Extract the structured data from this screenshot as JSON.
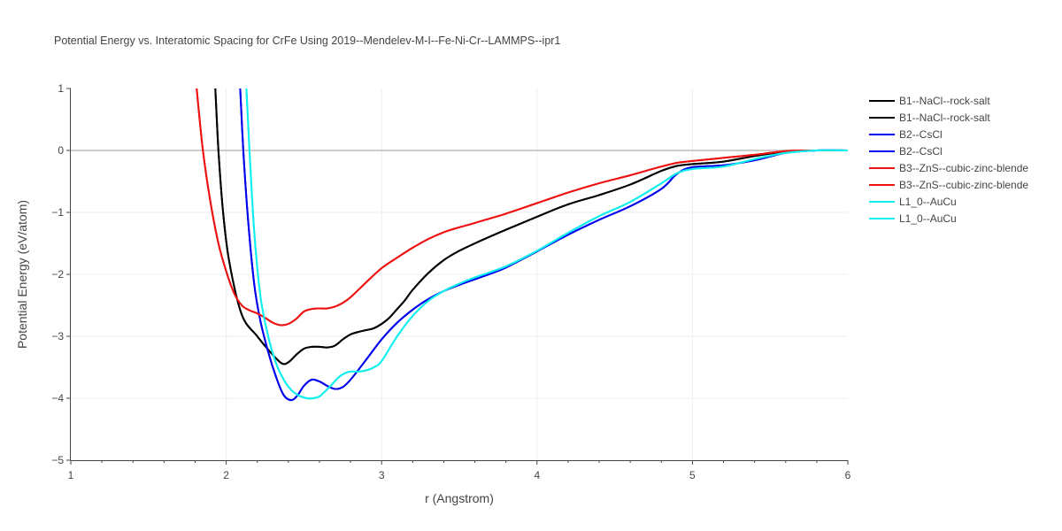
{
  "chart_data": {
    "type": "line",
    "title": "Potential Energy vs. Interatomic Spacing for CrFe Using 2019--Mendelev-M-I--Fe-Ni-Cr--LAMMPS--ipr1",
    "xlabel": "r (Angstrom)",
    "ylabel": "Potential Energy (eV/atom)",
    "xlim": [
      1,
      6
    ],
    "ylim": [
      -5,
      1
    ],
    "xticks": [
      "1",
      "2",
      "3",
      "4",
      "5",
      "6"
    ],
    "yticks": [
      "1",
      "0",
      "−1",
      "−2",
      "−3",
      "−4",
      "−5"
    ],
    "grid": true,
    "legend_position": "right",
    "series": [
      {
        "name": "B1--NaCl--rock-salt",
        "color": "#000000",
        "x": [
          1.93,
          1.95,
          1.98,
          2.02,
          2.1,
          2.2,
          2.3,
          2.36,
          2.4,
          2.45,
          2.5,
          2.55,
          2.6,
          2.65,
          2.7,
          2.75,
          2.8,
          2.85,
          2.9,
          2.95,
          3.0,
          3.05,
          3.1,
          3.15,
          3.2,
          3.3,
          3.4,
          3.5,
          3.6,
          3.8,
          4.0,
          4.2,
          4.4,
          4.6,
          4.8,
          4.9,
          5.0,
          5.2,
          5.4,
          5.6,
          5.8,
          6.0
        ],
        "y": [
          1.0,
          0.0,
          -1.0,
          -1.8,
          -2.65,
          -3.0,
          -3.3,
          -3.44,
          -3.42,
          -3.3,
          -3.2,
          -3.17,
          -3.17,
          -3.18,
          -3.15,
          -3.05,
          -2.97,
          -2.93,
          -2.9,
          -2.87,
          -2.8,
          -2.7,
          -2.56,
          -2.42,
          -2.25,
          -1.98,
          -1.77,
          -1.62,
          -1.5,
          -1.28,
          -1.07,
          -0.87,
          -0.72,
          -0.55,
          -0.33,
          -0.25,
          -0.22,
          -0.18,
          -0.09,
          -0.02,
          0.0,
          0.0
        ]
      },
      {
        "name": "B1--NaCl--rock-salt",
        "color": "#000000",
        "x": [
          1.93,
          1.95,
          1.98,
          2.02,
          2.1,
          2.2,
          2.3,
          2.36,
          2.4,
          2.45,
          2.5,
          2.55,
          2.6,
          2.65,
          2.7,
          2.75,
          2.8,
          2.85,
          2.9,
          2.95,
          3.0,
          3.05,
          3.1,
          3.15,
          3.2,
          3.3,
          3.4,
          3.5,
          3.6,
          3.8,
          4.0,
          4.2,
          4.4,
          4.6,
          4.8,
          4.9,
          5.0,
          5.2,
          5.4,
          5.6,
          5.8,
          6.0
        ],
        "y": [
          1.0,
          0.0,
          -1.0,
          -1.8,
          -2.65,
          -3.0,
          -3.3,
          -3.44,
          -3.42,
          -3.3,
          -3.2,
          -3.17,
          -3.17,
          -3.18,
          -3.15,
          -3.05,
          -2.97,
          -2.93,
          -2.9,
          -2.87,
          -2.8,
          -2.7,
          -2.56,
          -2.42,
          -2.25,
          -1.98,
          -1.77,
          -1.62,
          -1.5,
          -1.28,
          -1.07,
          -0.87,
          -0.72,
          -0.55,
          -0.33,
          -0.25,
          -0.22,
          -0.18,
          -0.09,
          -0.02,
          0.0,
          0.0
        ]
      },
      {
        "name": "B2--CsCl",
        "color": "#0000ee",
        "x": [
          2.09,
          2.11,
          2.14,
          2.18,
          2.22,
          2.27,
          2.32,
          2.37,
          2.42,
          2.46,
          2.5,
          2.55,
          2.6,
          2.65,
          2.7,
          2.75,
          2.8,
          2.9,
          3.0,
          3.1,
          3.2,
          3.3,
          3.4,
          3.5,
          3.6,
          3.7,
          3.8,
          4.0,
          4.2,
          4.4,
          4.6,
          4.8,
          4.9,
          5.0,
          5.2,
          5.4,
          5.6,
          5.8,
          6.0
        ],
        "y": [
          1.0,
          0.0,
          -1.1,
          -2.15,
          -2.75,
          -3.25,
          -3.65,
          -3.95,
          -4.03,
          -3.95,
          -3.8,
          -3.7,
          -3.73,
          -3.8,
          -3.85,
          -3.82,
          -3.7,
          -3.38,
          -3.05,
          -2.78,
          -2.57,
          -2.4,
          -2.27,
          -2.17,
          -2.08,
          -1.99,
          -1.89,
          -1.63,
          -1.36,
          -1.12,
          -0.9,
          -0.62,
          -0.38,
          -0.27,
          -0.24,
          -0.16,
          -0.04,
          0.0,
          0.0
        ]
      },
      {
        "name": "B2--CsCl",
        "color": "#0000ee",
        "x": [
          2.09,
          2.11,
          2.14,
          2.18,
          2.22,
          2.27,
          2.32,
          2.37,
          2.42,
          2.46,
          2.5,
          2.55,
          2.6,
          2.65,
          2.7,
          2.75,
          2.8,
          2.9,
          3.0,
          3.1,
          3.2,
          3.3,
          3.4,
          3.5,
          3.6,
          3.7,
          3.8,
          4.0,
          4.2,
          4.4,
          4.6,
          4.8,
          4.9,
          5.0,
          5.2,
          5.4,
          5.6,
          5.8,
          6.0
        ],
        "y": [
          1.0,
          0.0,
          -1.1,
          -2.15,
          -2.75,
          -3.25,
          -3.65,
          -3.95,
          -4.03,
          -3.95,
          -3.8,
          -3.7,
          -3.73,
          -3.8,
          -3.85,
          -3.82,
          -3.7,
          -3.38,
          -3.05,
          -2.78,
          -2.57,
          -2.4,
          -2.27,
          -2.17,
          -2.08,
          -1.99,
          -1.89,
          -1.63,
          -1.36,
          -1.12,
          -0.9,
          -0.62,
          -0.38,
          -0.27,
          -0.24,
          -0.16,
          -0.04,
          0.0,
          0.0
        ]
      },
      {
        "name": "B3--ZnS--cubic-zinc-blende",
        "color": "#ee1111",
        "x": [
          1.81,
          1.85,
          1.9,
          1.95,
          2.0,
          2.05,
          2.1,
          2.15,
          2.2,
          2.25,
          2.3,
          2.35,
          2.4,
          2.45,
          2.5,
          2.55,
          2.6,
          2.65,
          2.7,
          2.75,
          2.8,
          2.9,
          3.0,
          3.1,
          3.2,
          3.3,
          3.4,
          3.5,
          3.6,
          3.8,
          4.0,
          4.2,
          4.4,
          4.6,
          4.8,
          4.9,
          5.0,
          5.2,
          5.4,
          5.6,
          5.8,
          6.0
        ],
        "y": [
          1.0,
          0.0,
          -0.85,
          -1.5,
          -1.95,
          -2.3,
          -2.5,
          -2.58,
          -2.63,
          -2.7,
          -2.78,
          -2.82,
          -2.8,
          -2.72,
          -2.6,
          -2.56,
          -2.55,
          -2.55,
          -2.52,
          -2.46,
          -2.37,
          -2.13,
          -1.9,
          -1.73,
          -1.57,
          -1.43,
          -1.32,
          -1.24,
          -1.17,
          -1.02,
          -0.85,
          -0.68,
          -0.53,
          -0.4,
          -0.26,
          -0.2,
          -0.17,
          -0.12,
          -0.07,
          -0.01,
          0.0,
          0.0
        ]
      },
      {
        "name": "B3--ZnS--cubic-zinc-blende",
        "color": "#ee1111",
        "x": [
          1.81,
          1.85,
          1.9,
          1.95,
          2.0,
          2.05,
          2.1,
          2.15,
          2.2,
          2.25,
          2.3,
          2.35,
          2.4,
          2.45,
          2.5,
          2.55,
          2.6,
          2.65,
          2.7,
          2.75,
          2.8,
          2.9,
          3.0,
          3.1,
          3.2,
          3.3,
          3.4,
          3.5,
          3.6,
          3.8,
          4.0,
          4.2,
          4.4,
          4.6,
          4.8,
          4.9,
          5.0,
          5.2,
          5.4,
          5.6,
          5.8,
          6.0
        ],
        "y": [
          1.0,
          0.0,
          -0.85,
          -1.5,
          -1.95,
          -2.3,
          -2.5,
          -2.58,
          -2.63,
          -2.7,
          -2.78,
          -2.82,
          -2.8,
          -2.72,
          -2.6,
          -2.56,
          -2.55,
          -2.55,
          -2.52,
          -2.46,
          -2.37,
          -2.13,
          -1.9,
          -1.73,
          -1.57,
          -1.43,
          -1.32,
          -1.24,
          -1.17,
          -1.02,
          -0.85,
          -0.68,
          -0.53,
          -0.4,
          -0.26,
          -0.2,
          -0.17,
          -0.12,
          -0.07,
          -0.01,
          0.0,
          0.0
        ]
      },
      {
        "name": "L1_0--AuCu",
        "color": "#11eeee",
        "x": [
          2.13,
          2.15,
          2.18,
          2.22,
          2.27,
          2.32,
          2.37,
          2.42,
          2.47,
          2.52,
          2.56,
          2.6,
          2.64,
          2.68,
          2.72,
          2.76,
          2.8,
          2.85,
          2.9,
          2.95,
          3.0,
          3.1,
          3.2,
          3.3,
          3.4,
          3.5,
          3.6,
          3.8,
          4.0,
          4.2,
          4.4,
          4.6,
          4.8,
          4.9,
          5.0,
          5.2,
          5.4,
          5.6,
          5.8,
          6.0
        ],
        "y": [
          1.0,
          0.0,
          -1.3,
          -2.35,
          -3.0,
          -3.43,
          -3.7,
          -3.87,
          -3.96,
          -4.0,
          -4.0,
          -3.97,
          -3.88,
          -3.78,
          -3.67,
          -3.6,
          -3.57,
          -3.57,
          -3.55,
          -3.5,
          -3.4,
          -3.0,
          -2.67,
          -2.43,
          -2.27,
          -2.15,
          -2.05,
          -1.87,
          -1.62,
          -1.33,
          -1.06,
          -0.83,
          -0.53,
          -0.37,
          -0.3,
          -0.26,
          -0.14,
          -0.04,
          0.0,
          0.0
        ]
      },
      {
        "name": "L1_0--AuCu",
        "color": "#11eeee",
        "x": [
          2.13,
          2.15,
          2.18,
          2.22,
          2.27,
          2.32,
          2.37,
          2.42,
          2.47,
          2.52,
          2.56,
          2.6,
          2.64,
          2.68,
          2.72,
          2.76,
          2.8,
          2.85,
          2.9,
          2.95,
          3.0,
          3.1,
          3.2,
          3.3,
          3.4,
          3.5,
          3.6,
          3.8,
          4.0,
          4.2,
          4.4,
          4.6,
          4.8,
          4.9,
          5.0,
          5.2,
          5.4,
          5.6,
          5.8,
          6.0
        ],
        "y": [
          1.0,
          0.0,
          -1.3,
          -2.35,
          -3.0,
          -3.43,
          -3.7,
          -3.87,
          -3.96,
          -4.0,
          -4.0,
          -3.97,
          -3.88,
          -3.78,
          -3.67,
          -3.6,
          -3.57,
          -3.57,
          -3.55,
          -3.5,
          -3.4,
          -3.0,
          -2.67,
          -2.43,
          -2.27,
          -2.15,
          -2.05,
          -1.87,
          -1.62,
          -1.33,
          -1.06,
          -0.83,
          -0.53,
          -0.37,
          -0.3,
          -0.26,
          -0.14,
          -0.04,
          0.0,
          0.0
        ]
      }
    ]
  }
}
